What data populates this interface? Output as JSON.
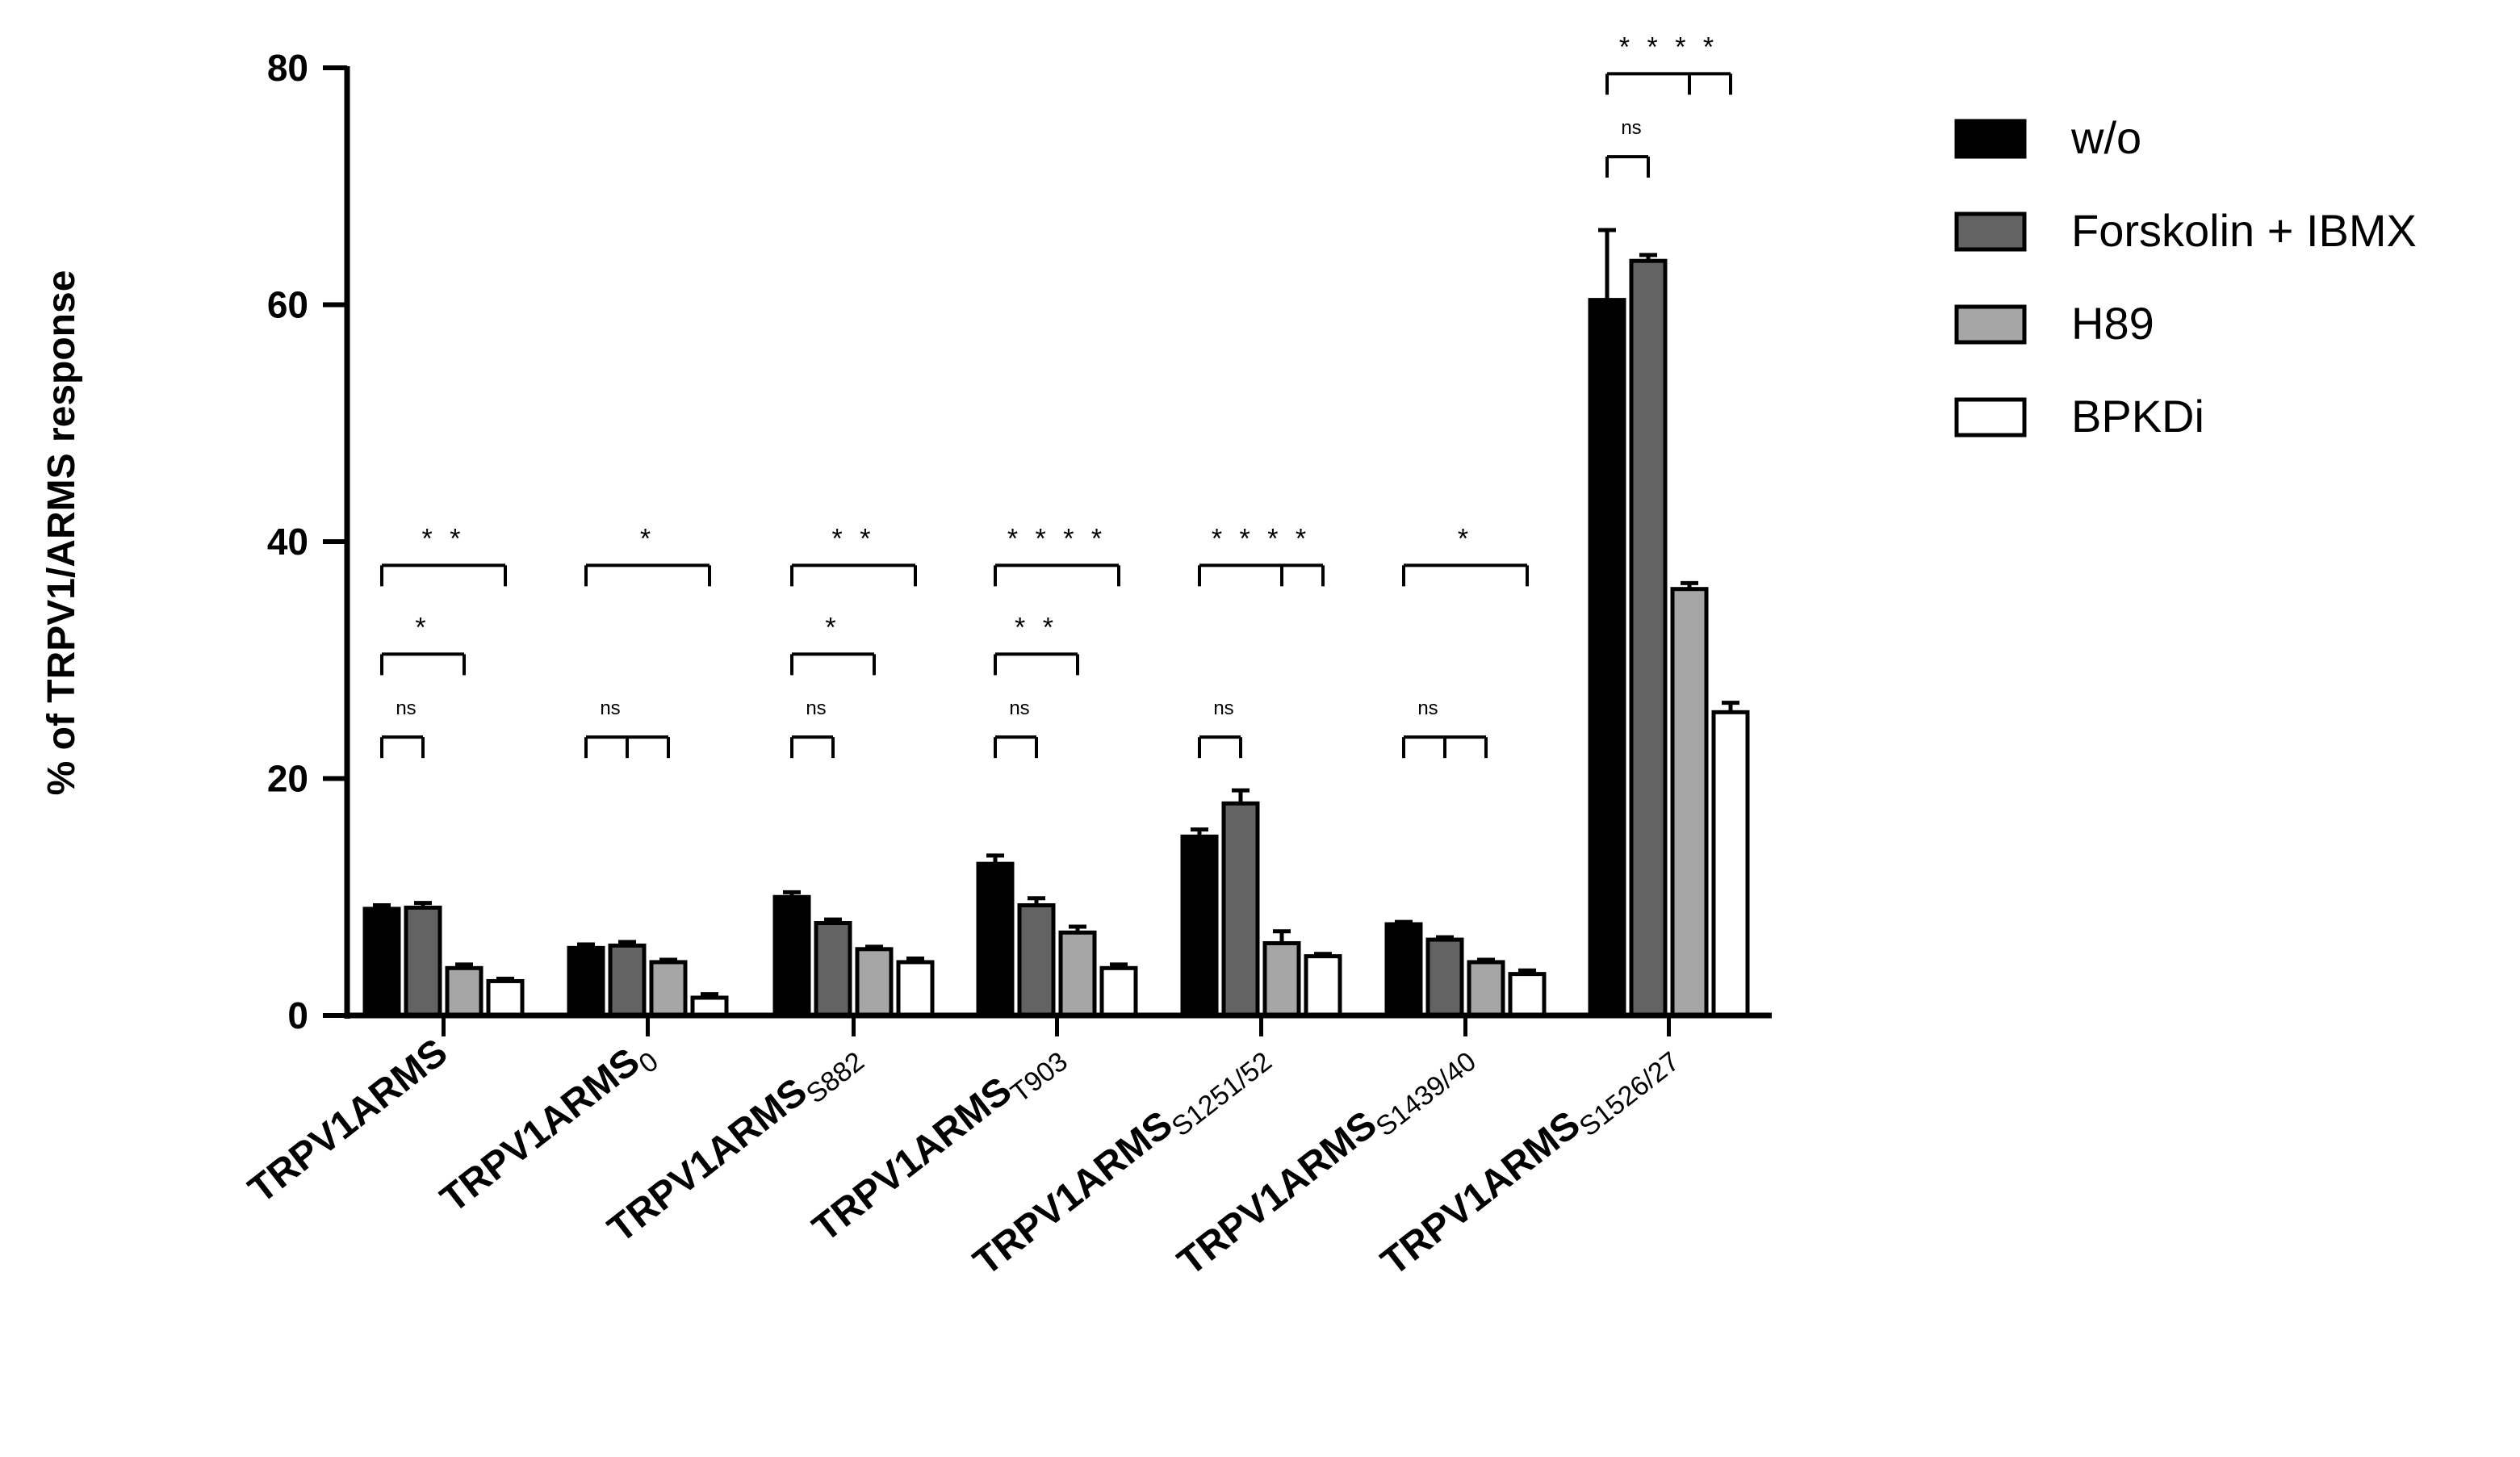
{
  "chart_data": {
    "type": "bar",
    "title": "",
    "xlabel": "",
    "ylabel": "% of TRPV1/ARMS response",
    "ylim": [
      0,
      80
    ],
    "yticks": [
      0,
      20,
      40,
      60,
      80
    ],
    "categories": [
      {
        "main": "TRPV1ARMS",
        "sub": ""
      },
      {
        "main": "TRPV1ARMS",
        "sub": "0"
      },
      {
        "main": "TRPV1ARMS",
        "sub": "S882"
      },
      {
        "main": "TRPV1ARMS",
        "sub": "T903"
      },
      {
        "main": "TRPV1ARMS",
        "sub": "S1251/52"
      },
      {
        "main": "TRPV1ARMS",
        "sub": "S1439/40"
      },
      {
        "main": "TRPV1ARMS",
        "sub": "S1526/27"
      }
    ],
    "series": [
      {
        "name": "w/o",
        "color": "#000000",
        "values": [
          9.0,
          5.7,
          10.0,
          12.8,
          15.1,
          7.7,
          60.4
        ],
        "errors": [
          0.3,
          0.3,
          0.4,
          0.7,
          0.6,
          0.2,
          5.9
        ]
      },
      {
        "name": "Forskolin + IBMX",
        "color": "#636363",
        "values": [
          9.1,
          5.9,
          7.8,
          9.3,
          17.9,
          6.4,
          63.7
        ],
        "errors": [
          0.4,
          0.3,
          0.3,
          0.6,
          1.1,
          0.2,
          0.5
        ]
      },
      {
        "name": "H89",
        "color": "#a6a6a6",
        "values": [
          4.0,
          4.5,
          5.6,
          7.0,
          6.1,
          4.5,
          36.0
        ],
        "errors": [
          0.3,
          0.2,
          0.2,
          0.5,
          1.0,
          0.2,
          0.5
        ]
      },
      {
        "name": "BPKDi",
        "color": "#ffffff",
        "values": [
          2.9,
          1.5,
          4.5,
          4.0,
          5.0,
          3.5,
          25.6
        ],
        "errors": [
          0.2,
          0.3,
          0.3,
          0.3,
          0.2,
          0.3,
          0.8
        ]
      }
    ],
    "significance": [
      {
        "group": 0,
        "brackets": [
          {
            "label": "ns",
            "y": 23.5,
            "from": 0,
            "to": 1,
            "drops": [
              0,
              1
            ]
          },
          {
            "label": "*",
            "y": 30.5,
            "from": 0,
            "to": 2,
            "drops": [
              0,
              2
            ]
          },
          {
            "label": "**",
            "y": 38.0,
            "from": 0,
            "to": 3,
            "drops": [
              0,
              3
            ]
          }
        ]
      },
      {
        "group": 1,
        "brackets": [
          {
            "label": "ns",
            "y": 23.5,
            "from": 0,
            "to": 2,
            "drops": [
              0,
              1,
              2
            ]
          },
          {
            "label": "*",
            "y": 38.0,
            "from": 0,
            "to": 3,
            "drops": [
              0,
              3
            ]
          }
        ]
      },
      {
        "group": 2,
        "brackets": [
          {
            "label": "ns",
            "y": 23.5,
            "from": 0,
            "to": 1,
            "drops": [
              0,
              1
            ]
          },
          {
            "label": "*",
            "y": 30.5,
            "from": 0,
            "to": 2,
            "drops": [
              0,
              2
            ]
          },
          {
            "label": "**",
            "y": 38.0,
            "from": 0,
            "to": 3,
            "drops": [
              0,
              3
            ]
          }
        ]
      },
      {
        "group": 3,
        "brackets": [
          {
            "label": "ns",
            "y": 23.5,
            "from": 0,
            "to": 1,
            "drops": [
              0,
              1
            ]
          },
          {
            "label": "**",
            "y": 30.5,
            "from": 0,
            "to": 2,
            "drops": [
              0,
              2
            ]
          },
          {
            "label": "****",
            "y": 38.0,
            "from": 0,
            "to": 3,
            "drops": [
              0,
              3
            ]
          }
        ]
      },
      {
        "group": 4,
        "brackets": [
          {
            "label": "ns",
            "y": 23.5,
            "from": 0,
            "to": 1,
            "drops": [
              0,
              1
            ]
          },
          {
            "label": "****",
            "y": 38.0,
            "from": 0,
            "to": 3,
            "drops": [
              0,
              2,
              3
            ]
          }
        ]
      },
      {
        "group": 5,
        "brackets": [
          {
            "label": "ns",
            "y": 23.5,
            "from": 0,
            "to": 2,
            "drops": [
              0,
              1,
              2
            ]
          },
          {
            "label": "*",
            "y": 38.0,
            "from": 0,
            "to": 3,
            "drops": [
              0,
              3
            ]
          }
        ]
      },
      {
        "group": 6,
        "brackets": [
          {
            "label": "ns",
            "y": 72.5,
            "from": 0,
            "to": 1,
            "drops": [
              0,
              1
            ]
          },
          {
            "label": "****",
            "y": 79.5,
            "from": 0,
            "to": 3,
            "drops": [
              0,
              2,
              3
            ]
          }
        ]
      }
    ],
    "legend": {
      "position": "top-right"
    }
  }
}
